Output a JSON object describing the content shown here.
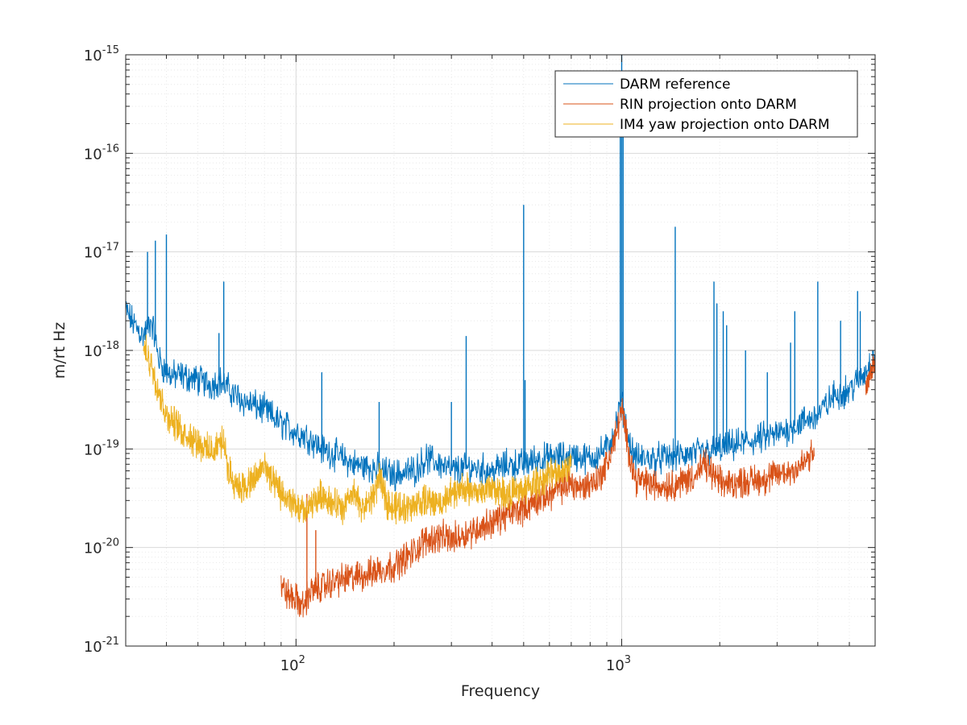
{
  "chart_data": {
    "type": "line",
    "xscale": "log",
    "yscale": "log",
    "xlim": [
      30,
      6000
    ],
    "ylim": [
      1e-21,
      1e-15
    ],
    "xlabel": "Frequency",
    "ylabel": "m/rt Hz",
    "grid": true,
    "minor_grid": true,
    "legend_position": "top-right",
    "x_ticks": [
      {
        "base": "10",
        "exp": "2",
        "value": 100
      },
      {
        "base": "10",
        "exp": "3",
        "value": 1000
      }
    ],
    "y_ticks": [
      {
        "base": "10",
        "exp": "-21",
        "value": 1e-21
      },
      {
        "base": "10",
        "exp": "-20",
        "value": 1e-20
      },
      {
        "base": "10",
        "exp": "-19",
        "value": 1e-19
      },
      {
        "base": "10",
        "exp": "-18",
        "value": 1e-18
      },
      {
        "base": "10",
        "exp": "-17",
        "value": 1e-17
      },
      {
        "base": "10",
        "exp": "-16",
        "value": 1e-16
      },
      {
        "base": "10",
        "exp": "-15",
        "value": 1e-15
      }
    ],
    "series": [
      {
        "name": "DARM reference",
        "color": "#0072BD",
        "x": [
          30,
          32,
          34,
          36,
          38,
          40,
          42,
          45,
          50,
          55,
          58,
          60,
          65,
          70,
          80,
          90,
          100,
          110,
          120,
          130,
          150,
          170,
          200,
          230,
          250,
          280,
          300,
          350,
          400,
          450,
          500,
          550,
          600,
          700,
          800,
          900,
          950,
          1000,
          1050,
          1100,
          1200,
          1300,
          1500,
          1700,
          2000,
          2500,
          3000,
          3500,
          4000,
          4500,
          5000,
          5500,
          6000
        ],
        "y": [
          2.5e-18,
          1.8e-18,
          1.4e-18,
          2e-18,
          8e-19,
          6e-19,
          5.5e-19,
          5.5e-19,
          5e-19,
          4.5e-19,
          5e-19,
          4.5e-19,
          3.5e-19,
          3e-19,
          2.5e-19,
          1.8e-19,
          1.5e-19,
          1.3e-19,
          1e-19,
          9e-20,
          7e-20,
          6.5e-20,
          5.5e-20,
          6e-20,
          8e-20,
          7e-20,
          6e-20,
          6.5e-20,
          6e-20,
          7e-20,
          7e-20,
          8e-20,
          8e-20,
          8.5e-20,
          8e-20,
          1e-19,
          1.5e-19,
          3e-19,
          1.2e-19,
          8e-20,
          8e-20,
          8e-20,
          8.5e-20,
          9e-20,
          1e-19,
          1.2e-19,
          1.4e-19,
          1.8e-19,
          2.2e-19,
          3.5e-19,
          4e-19,
          5.5e-19,
          9e-19
        ],
        "peaks": [
          {
            "x": 35,
            "y": 1e-17
          },
          {
            "x": 37,
            "y": 1.3e-17
          },
          {
            "x": 40,
            "y": 1.5e-17
          },
          {
            "x": 58,
            "y": 1.5e-18
          },
          {
            "x": 60,
            "y": 5e-18
          },
          {
            "x": 120,
            "y": 6e-19
          },
          {
            "x": 180,
            "y": 3e-19
          },
          {
            "x": 300,
            "y": 3e-19
          },
          {
            "x": 333,
            "y": 1.4e-18
          },
          {
            "x": 500,
            "y": 3e-17
          },
          {
            "x": 505,
            "y": 5e-19
          },
          {
            "x": 990,
            "y": 3e-16
          },
          {
            "x": 1000,
            "y": 1e-15
          },
          {
            "x": 1010,
            "y": 5e-16
          },
          {
            "x": 1460,
            "y": 1.8e-17
          },
          {
            "x": 1920,
            "y": 5e-18
          },
          {
            "x": 1960,
            "y": 3e-18
          },
          {
            "x": 2050,
            "y": 2.5e-18
          },
          {
            "x": 2100,
            "y": 1.8e-18
          },
          {
            "x": 2400,
            "y": 1e-18
          },
          {
            "x": 2800,
            "y": 6e-19
          },
          {
            "x": 3300,
            "y": 1.2e-18
          },
          {
            "x": 3400,
            "y": 2.5e-18
          },
          {
            "x": 4000,
            "y": 5e-18
          },
          {
            "x": 4700,
            "y": 2e-18
          },
          {
            "x": 5300,
            "y": 4e-18
          },
          {
            "x": 5400,
            "y": 2.5e-18
          },
          {
            "x": 5900,
            "y": 1e-18
          }
        ]
      },
      {
        "name": "RIN projection onto DARM",
        "color": "#D95319",
        "x": [
          90,
          95,
          100,
          105,
          110,
          120,
          130,
          150,
          170,
          200,
          230,
          250,
          280,
          300,
          350,
          400,
          450,
          500,
          550,
          600,
          650,
          700,
          750,
          800,
          850,
          900,
          950,
          1000,
          1050,
          1100,
          1200,
          1300,
          1400,
          1500,
          1600,
          1700,
          1800,
          2000,
          2200,
          2500,
          2800,
          3000,
          3300,
          3600,
          3900
        ],
        "y": [
          4e-21,
          3.2e-21,
          3e-21,
          2.5e-21,
          3.5e-21,
          4e-21,
          4.5e-21,
          5e-21,
          5.5e-21,
          6.5e-21,
          9e-21,
          1.2e-20,
          1.3e-20,
          1.2e-20,
          1.5e-20,
          1.8e-20,
          2.2e-20,
          2.5e-20,
          3e-20,
          3.5e-20,
          4e-20,
          4.5e-20,
          4e-20,
          4.5e-20,
          5e-20,
          7e-20,
          1.2e-19,
          2.5e-19,
          1e-19,
          5e-20,
          4.5e-20,
          4.2e-20,
          4.3e-20,
          4.5e-20,
          5e-20,
          5.5e-20,
          7e-20,
          4.5e-20,
          4.5e-20,
          4.8e-20,
          5e-20,
          5.5e-20,
          6e-20,
          7e-20,
          9e-20
        ],
        "peaks": [
          {
            "x": 108,
            "y": 3.5e-20
          },
          {
            "x": 115,
            "y": 1.5e-20
          },
          {
            "x": 178,
            "y": 8e-21
          }
        ],
        "tail": {
          "x": [
            5600,
            6000
          ],
          "y": [
            4e-19,
            8e-19
          ]
        }
      },
      {
        "name": "IM4 yaw projection onto DARM",
        "color": "#EDB120",
        "x": [
          34,
          35,
          36,
          40,
          45,
          50,
          55,
          58,
          60,
          62,
          65,
          70,
          75,
          80,
          85,
          90,
          95,
          100,
          105,
          110,
          120,
          130,
          140,
          150,
          160,
          170,
          180,
          190,
          200,
          220,
          250,
          280,
          300,
          330,
          350,
          400,
          450,
          500,
          550,
          600,
          650,
          700
        ],
        "y": [
          1e-18,
          9e-19,
          7e-19,
          2.2e-19,
          1.5e-19,
          1.2e-19,
          9e-20,
          1.2e-19,
          1.1e-19,
          6e-20,
          4.5e-20,
          4e-20,
          5e-20,
          7e-20,
          4.5e-20,
          3.5e-20,
          3e-20,
          2.5e-20,
          2.3e-20,
          2.5e-20,
          3.5e-20,
          2.8e-20,
          2.5e-20,
          3.5e-20,
          2.5e-20,
          3e-20,
          5e-20,
          3e-20,
          2.5e-20,
          2.6e-20,
          3e-20,
          2.8e-20,
          3.5e-20,
          4e-20,
          3.5e-20,
          4e-20,
          3.5e-20,
          3.8e-20,
          4.5e-20,
          5.5e-20,
          6e-20,
          7e-20
        ]
      }
    ]
  }
}
